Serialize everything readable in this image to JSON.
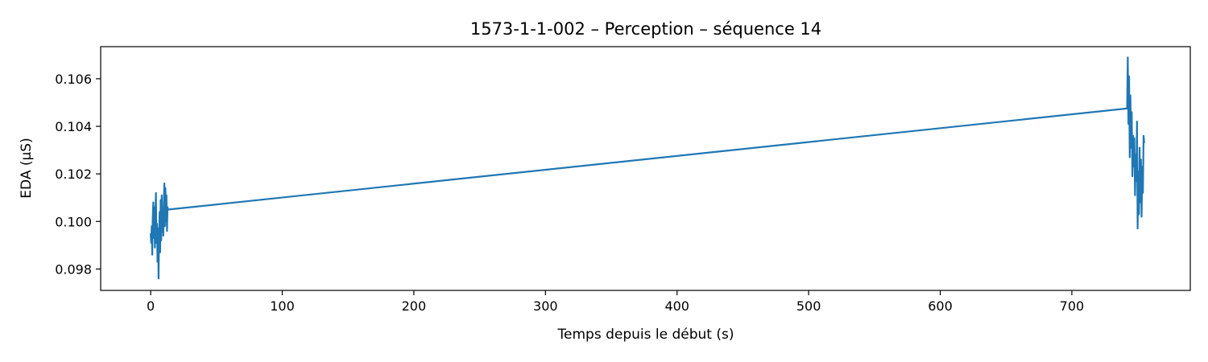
{
  "chart_data": {
    "type": "line",
    "title": "1573-1-1-002 – Perception – séquence 14",
    "xlabel": "Temps depuis le début (s)",
    "ylabel": "EDA (µS)",
    "xlim": [
      -38,
      790
    ],
    "ylim": [
      0.0971,
      0.10735
    ],
    "xticks": [
      0,
      100,
      200,
      300,
      400,
      500,
      600,
      700
    ],
    "yticks": [
      0.098,
      0.1,
      0.102,
      0.104,
      0.106
    ],
    "ytick_labels": [
      "0.098",
      "0.100",
      "0.102",
      "0.104",
      "0.106"
    ],
    "grid": false,
    "legend": "none",
    "series": [
      {
        "color": "#1f77b4",
        "points": [
          [
            0.0,
            0.0995
          ],
          [
            0.4,
            0.0991
          ],
          [
            0.8,
            0.0998
          ],
          [
            1.2,
            0.0986
          ],
          [
            1.6,
            0.1002
          ],
          [
            2.0,
            0.1008
          ],
          [
            2.4,
            0.0993
          ],
          [
            2.8,
            0.1006
          ],
          [
            3.2,
            0.0989
          ],
          [
            3.6,
            0.1003
          ],
          [
            4.0,
            0.1012
          ],
          [
            4.4,
            0.0991
          ],
          [
            4.8,
            0.0999
          ],
          [
            5.2,
            0.0983
          ],
          [
            5.6,
            0.0997
          ],
          [
            6.0,
            0.0976
          ],
          [
            6.4,
            0.0994
          ],
          [
            6.8,
            0.1004
          ],
          [
            7.2,
            0.0987
          ],
          [
            7.6,
            0.1009
          ],
          [
            8.0,
            0.0992
          ],
          [
            8.4,
            0.1011
          ],
          [
            8.8,
            0.0996
          ],
          [
            9.2,
            0.1002
          ],
          [
            9.6,
            0.0994
          ],
          [
            10.0,
            0.1008
          ],
          [
            10.4,
            0.1016
          ],
          [
            10.8,
            0.0998
          ],
          [
            11.2,
            0.1014
          ],
          [
            11.6,
            0.1
          ],
          [
            12.0,
            0.1011
          ],
          [
            12.4,
            0.0996
          ],
          [
            12.8,
            0.1006
          ],
          [
            13.2,
            0.1005
          ],
          [
            742.0,
            0.10475
          ],
          [
            742.5,
            0.1069
          ],
          [
            743.0,
            0.1041
          ],
          [
            743.5,
            0.1061
          ],
          [
            744.0,
            0.1027
          ],
          [
            744.5,
            0.1053
          ],
          [
            745.0,
            0.1031
          ],
          [
            745.5,
            0.1046
          ],
          [
            746.0,
            0.1019
          ],
          [
            746.5,
            0.1036
          ],
          [
            747.0,
            0.1023
          ],
          [
            747.5,
            0.1035
          ],
          [
            748.0,
            0.1011
          ],
          [
            748.5,
            0.1028
          ],
          [
            749.0,
            0.1017
          ],
          [
            749.5,
            0.1042
          ],
          [
            750.0,
            0.0997
          ],
          [
            750.5,
            0.1021
          ],
          [
            751.0,
            0.1003
          ],
          [
            751.5,
            0.1031
          ],
          [
            752.0,
            0.1008
          ],
          [
            752.5,
            0.1026
          ],
          [
            753.0,
            0.1002
          ],
          [
            753.5,
            0.1023
          ],
          [
            754.0,
            0.1012
          ],
          [
            754.5,
            0.1036
          ],
          [
            755.0,
            0.1033
          ]
        ]
      }
    ]
  }
}
